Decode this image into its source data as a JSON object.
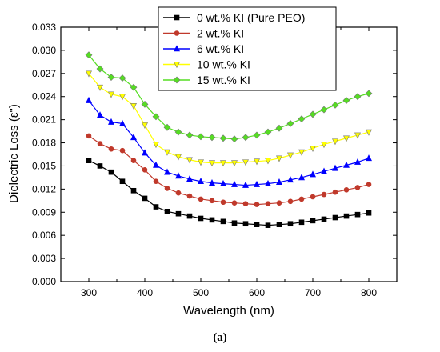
{
  "caption": "(a)",
  "chart_data": {
    "type": "line",
    "xlabel": "Wavelength (nm)",
    "ylabel": "Dielectric Loss (ε\")",
    "xlim": [
      250,
      850
    ],
    "ylim": [
      0,
      0.033
    ],
    "xticks": [
      "300",
      "400",
      "500",
      "600",
      "700",
      "800"
    ],
    "yticks": [
      "0.000",
      "0.003",
      "0.006",
      "0.009",
      "0.012",
      "0.015",
      "0.018",
      "0.021",
      "0.024",
      "0.027",
      "0.030",
      "0.033"
    ],
    "grid": false,
    "legend_position": "top-right",
    "x": [
      300,
      320,
      340,
      360,
      380,
      400,
      420,
      440,
      460,
      480,
      500,
      520,
      540,
      560,
      580,
      600,
      620,
      640,
      660,
      680,
      700,
      720,
      740,
      760,
      780,
      800
    ],
    "series": [
      {
        "name": "0   wt.% KI (Pure  PEO)",
        "color": "#000000",
        "marker": "square",
        "values": [
          0.0157,
          0.015,
          0.0142,
          0.013,
          0.0118,
          0.0108,
          0.0097,
          0.0091,
          0.0088,
          0.0085,
          0.0082,
          0.008,
          0.0078,
          0.0076,
          0.0075,
          0.0074,
          0.0073,
          0.0074,
          0.0075,
          0.0077,
          0.0079,
          0.0081,
          0.0083,
          0.0085,
          0.0087,
          0.0089
        ]
      },
      {
        "name": "2   wt.% KI",
        "color": "#c0392b",
        "marker": "circle",
        "values": [
          0.0189,
          0.0179,
          0.0172,
          0.017,
          0.0157,
          0.0145,
          0.013,
          0.0121,
          0.0115,
          0.0111,
          0.0107,
          0.0105,
          0.0103,
          0.0102,
          0.0101,
          0.01,
          0.0101,
          0.0102,
          0.0104,
          0.0107,
          0.011,
          0.0113,
          0.0116,
          0.0119,
          0.0122,
          0.0126
        ]
      },
      {
        "name": "6   wt.% KI",
        "color": "#0000ff",
        "marker": "triangle",
        "values": [
          0.0235,
          0.0216,
          0.0207,
          0.0205,
          0.0187,
          0.0167,
          0.0151,
          0.0142,
          0.0137,
          0.0133,
          0.013,
          0.0128,
          0.0127,
          0.0126,
          0.0125,
          0.0126,
          0.0127,
          0.0129,
          0.0132,
          0.0135,
          0.0139,
          0.0143,
          0.0147,
          0.0151,
          0.0155,
          0.016
        ]
      },
      {
        "name": "10 wt.% KI",
        "color": "#ffff00",
        "marker": "triangle-down",
        "values": [
          0.027,
          0.0252,
          0.0243,
          0.024,
          0.0228,
          0.0203,
          0.0178,
          0.0168,
          0.0162,
          0.0158,
          0.0155,
          0.0154,
          0.0154,
          0.0154,
          0.0155,
          0.0156,
          0.0157,
          0.016,
          0.0164,
          0.0168,
          0.0173,
          0.0178,
          0.0182,
          0.0186,
          0.019,
          0.0194
        ]
      },
      {
        "name": "15 wt.% KI",
        "color": "#55dd22",
        "marker": "diamond",
        "values": [
          0.0294,
          0.0276,
          0.0265,
          0.0264,
          0.0252,
          0.023,
          0.0214,
          0.02,
          0.0194,
          0.019,
          0.0188,
          0.0187,
          0.0186,
          0.0185,
          0.0187,
          0.019,
          0.0194,
          0.0199,
          0.0205,
          0.0211,
          0.0217,
          0.0223,
          0.0229,
          0.0235,
          0.024,
          0.0244
        ]
      }
    ]
  }
}
